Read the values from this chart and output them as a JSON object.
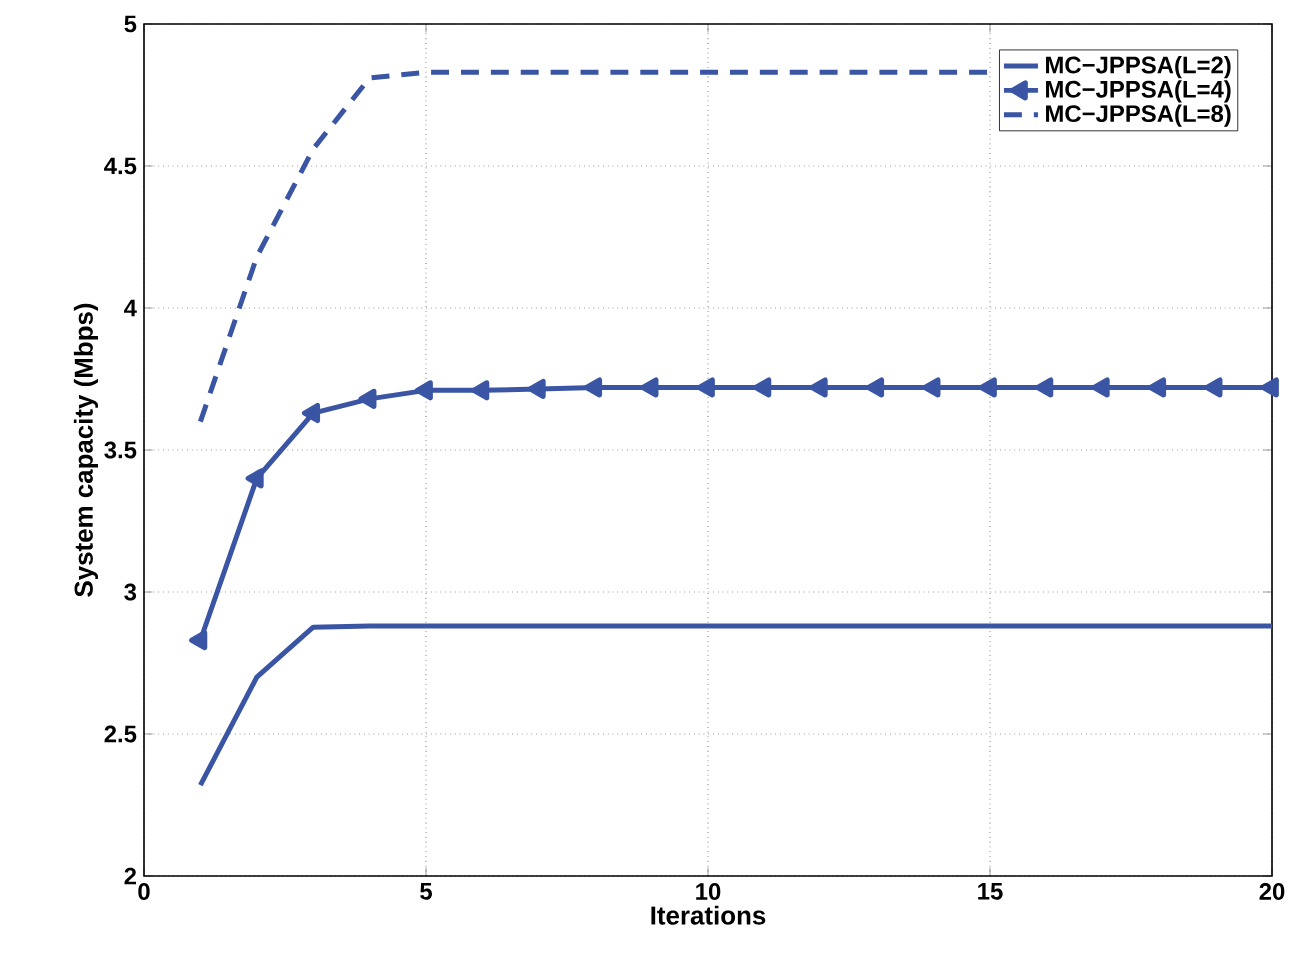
{
  "chart_data": {
    "type": "line",
    "xlabel": "Iterations",
    "ylabel": "System capacity (Mbps)",
    "x": [
      1,
      2,
      3,
      4,
      5,
      6,
      7,
      8,
      9,
      10,
      11,
      12,
      13,
      14,
      15,
      16,
      17,
      18,
      19,
      20
    ],
    "series": [
      {
        "name": "MC−JPPSA(L=2)",
        "color": "#3a55a4",
        "line_style": "solid",
        "marker": "none",
        "values": [
          2.32,
          2.7,
          2.876,
          2.88,
          2.88,
          2.88,
          2.88,
          2.88,
          2.88,
          2.88,
          2.88,
          2.88,
          2.88,
          2.88,
          2.88,
          2.88,
          2.88,
          2.88,
          2.88,
          2.88
        ]
      },
      {
        "name": "MC−JPPSA(L=4)",
        "color": "#3a55a4",
        "line_style": "solid",
        "marker": "triangle",
        "values": [
          2.83,
          3.4,
          3.63,
          3.68,
          3.71,
          3.71,
          3.715,
          3.72,
          3.72,
          3.72,
          3.72,
          3.72,
          3.72,
          3.72,
          3.72,
          3.72,
          3.72,
          3.72,
          3.72,
          3.72
        ]
      },
      {
        "name": "MC−JPPSA(L=8)",
        "color": "#3a55a4",
        "line_style": "dashed",
        "marker": "none",
        "values": [
          3.6,
          4.18,
          4.56,
          4.81,
          4.83,
          4.83,
          4.83,
          4.83,
          4.83,
          4.83,
          4.83,
          4.83,
          4.83,
          4.83,
          4.83,
          null,
          null,
          null,
          null,
          null
        ]
      }
    ],
    "xlim": [
      0,
      20
    ],
    "ylim": [
      2,
      5
    ],
    "xticks": [
      0,
      5,
      10,
      15,
      20
    ],
    "yticks": [
      2,
      2.5,
      3,
      3.5,
      4,
      4.5,
      5
    ],
    "grid": true,
    "legend": "top right"
  }
}
